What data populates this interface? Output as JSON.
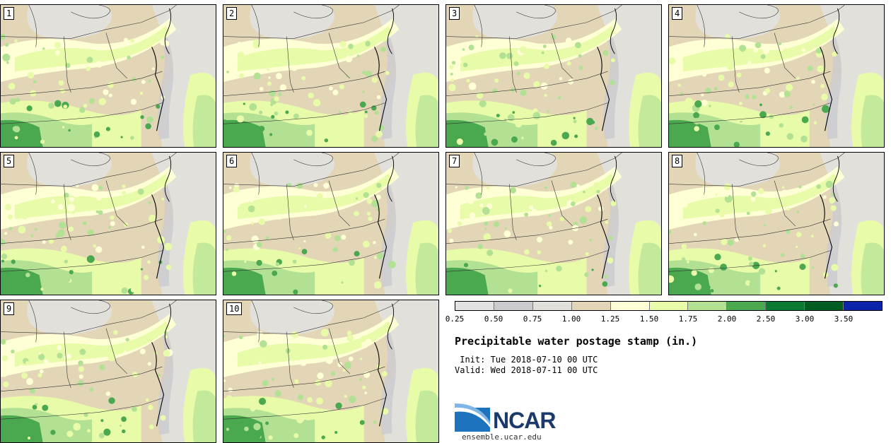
{
  "panels": [
    {
      "label": "1",
      "seed": 11
    },
    {
      "label": "2",
      "seed": 23
    },
    {
      "label": "3",
      "seed": 37
    },
    {
      "label": "4",
      "seed": 41
    },
    {
      "label": "5",
      "seed": 53
    },
    {
      "label": "6",
      "seed": 67
    },
    {
      "label": "7",
      "seed": 71
    },
    {
      "label": "8",
      "seed": 83
    },
    {
      "label": "9",
      "seed": 97
    },
    {
      "label": "10",
      "seed": 101
    }
  ],
  "colorbar": {
    "ticks": [
      "0.25",
      "0.50",
      "0.75",
      "1.00",
      "1.25",
      "1.50",
      "1.75",
      "2.00",
      "2.50",
      "3.00",
      "3.50"
    ],
    "colors": [
      "#e2e2e2",
      "#cbcbcf",
      "#e1e0db",
      "#e3d6b6",
      "#ffffd6",
      "#e8fba8",
      "#b3e194",
      "#4aa84e",
      "#0a7a32",
      "#005c23",
      "#0b24aa"
    ]
  },
  "title": "Precipitable water postage stamp (in.)",
  "init": " Init: Tue 2018-07-10 00 UTC",
  "valid": "Valid: Wed 2018-07-11 00 UTC",
  "logo": {
    "text": "NCAR",
    "site": "ensemble.ucar.edu",
    "color": "#1b3a6b",
    "accent": "#1e73be"
  }
}
